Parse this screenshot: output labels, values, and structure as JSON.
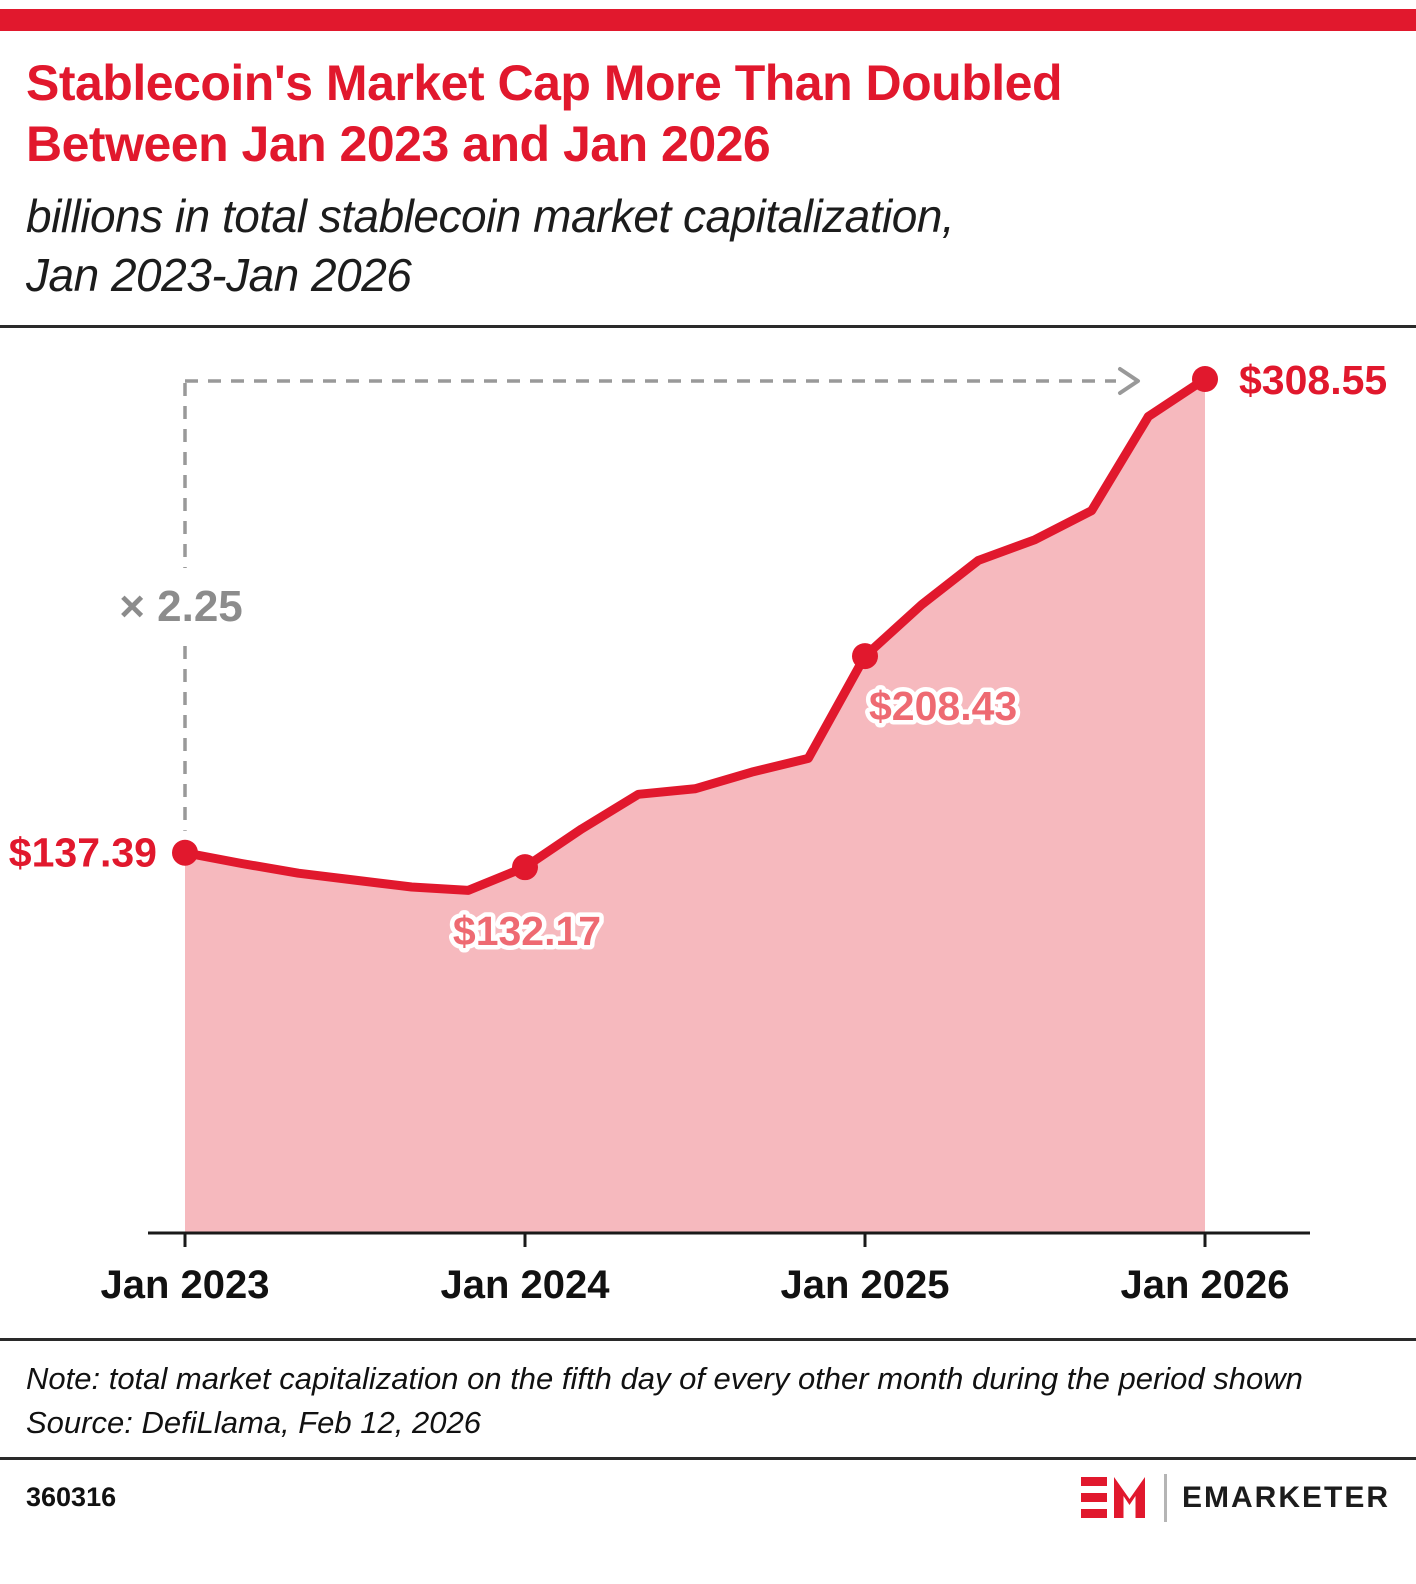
{
  "colors": {
    "red": "#e1182d",
    "area_fill": "#f6b9be",
    "soft_red": "#ee6a72",
    "dash_gray": "#999999",
    "multiplier_gray": "#8c8c8c",
    "axis": "#1a1a1a"
  },
  "header": {
    "title_line1": "Stablecoin's Market Cap More Than Doubled",
    "title_line2": "Between Jan 2023 and Jan 2026",
    "subtitle_line1": "billions in total stablecoin market capitalization,",
    "subtitle_line2": "Jan 2023-Jan 2026"
  },
  "chart_data": {
    "type": "area",
    "title": "Stablecoin's Market Cap More Than Doubled Between Jan 2023 and Jan 2026",
    "ylabel": "billions in total stablecoin market capitalization",
    "x": [
      "Jan 2023",
      "Mar 2023",
      "May 2023",
      "Jul 2023",
      "Sep 2023",
      "Nov 2023",
      "Jan 2024",
      "Mar 2024",
      "May 2024",
      "Jul 2024",
      "Sep 2024",
      "Nov 2024",
      "Jan 2025",
      "Mar 2025",
      "May 2025",
      "Jul 2025",
      "Sep 2025",
      "Nov 2025",
      "Jan 2026"
    ],
    "values": [
      137.39,
      133.5,
      130.0,
      127.5,
      125.0,
      123.8,
      132.17,
      146.0,
      158.5,
      160.5,
      166.5,
      171.5,
      208.43,
      227.0,
      243.0,
      250.5,
      261.0,
      295.0,
      308.55
    ],
    "ylim": [
      0,
      320
    ],
    "grid": false,
    "legend": false,
    "tick_indices": [
      0,
      6,
      12,
      18
    ],
    "x_tick_labels": [
      "Jan 2023",
      "Jan 2024",
      "Jan 2025",
      "Jan 2026"
    ],
    "annotations": [
      {
        "index": 0,
        "label": "$137.39",
        "placement": "left",
        "style": "strong"
      },
      {
        "index": 6,
        "label": "$132.17",
        "placement": "below",
        "style": "soft"
      },
      {
        "index": 12,
        "label": "$208.43",
        "placement": "below-right",
        "style": "soft"
      },
      {
        "index": 18,
        "label": "$308.55",
        "placement": "right",
        "style": "strong"
      }
    ],
    "multiplier_label": "× 2.25"
  },
  "footnote": {
    "note": "Note: total market capitalization on the fifth day of every other month during the period shown",
    "source": "Source: DefiLlama, Feb 12, 2026"
  },
  "footer": {
    "chart_id": "360316",
    "brand": "EMARKETER"
  }
}
